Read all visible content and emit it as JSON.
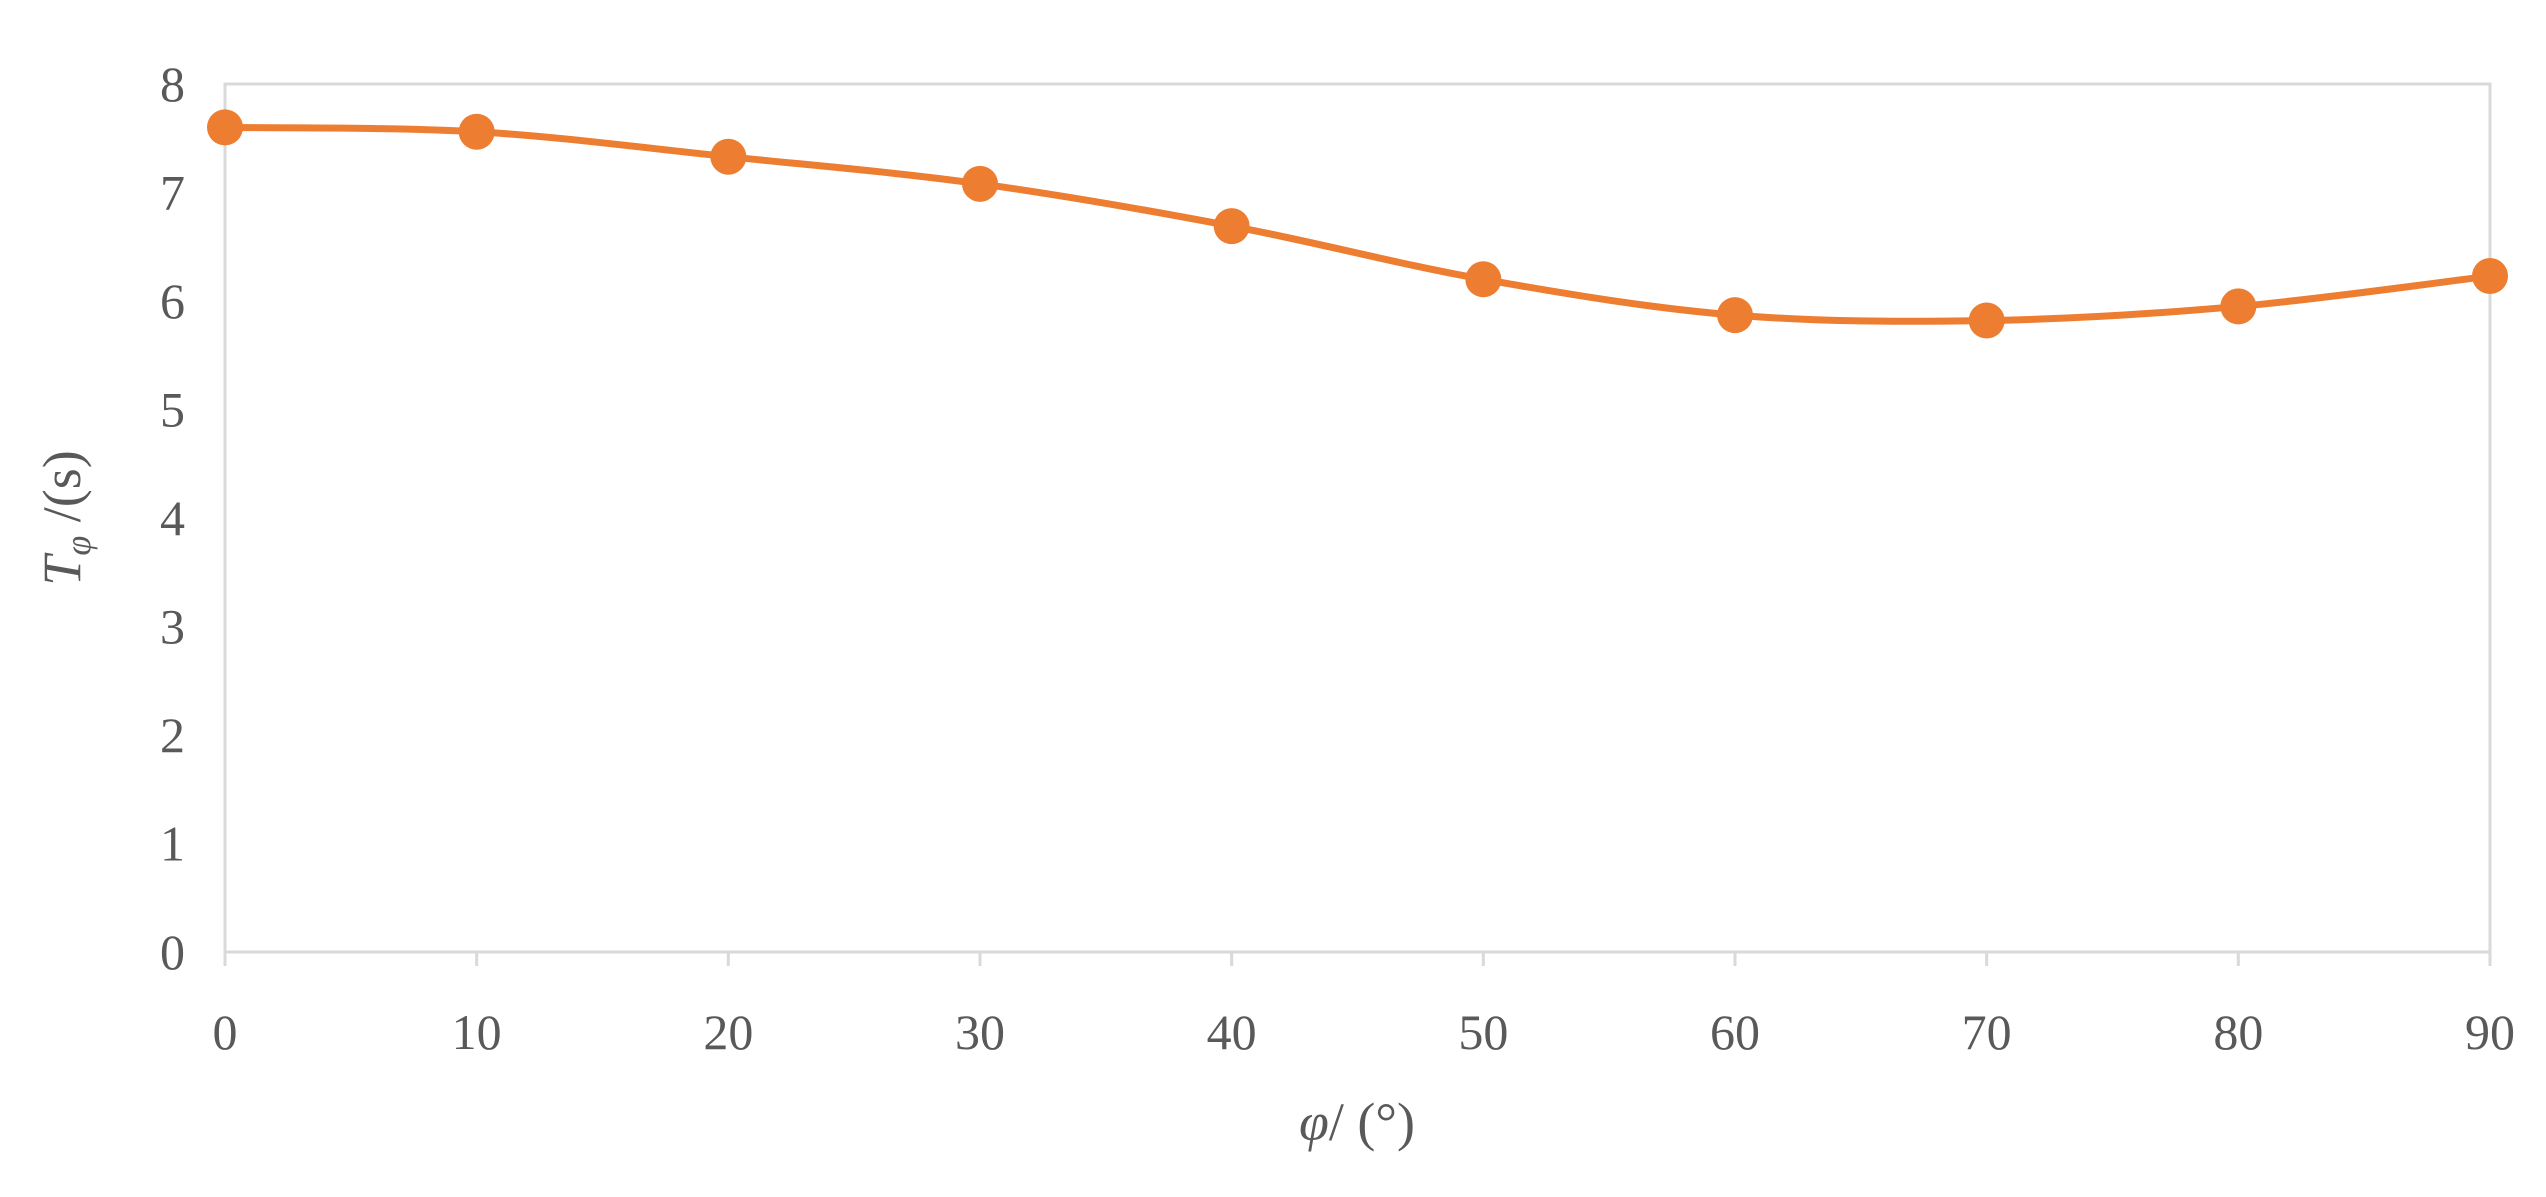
{
  "chart_data": {
    "type": "line",
    "smooth": true,
    "markers": true,
    "x": [
      0,
      10,
      20,
      30,
      40,
      50,
      60,
      70,
      80,
      90
    ],
    "series": [
      {
        "values": [
          7.6,
          7.56,
          7.33,
          7.08,
          6.69,
          6.2,
          5.87,
          5.82,
          5.95,
          6.23
        ],
        "color": "#ED7D31"
      }
    ],
    "xlim": [
      0,
      90
    ],
    "ylim": [
      0,
      8
    ],
    "xticks": [
      0,
      10,
      20,
      30,
      40,
      50,
      60,
      70,
      80,
      90
    ],
    "yticks": [
      0,
      1,
      2,
      3,
      4,
      5,
      6,
      7,
      8
    ],
    "xlabel": {
      "symbol": "φ",
      "unit": "/ (°)"
    },
    "ylabel": {
      "symbol": "T",
      "subscript": "φ",
      "unit": " /(s)"
    },
    "grid": false,
    "plot_frame": true,
    "frame_color": "#D9D9D9"
  }
}
